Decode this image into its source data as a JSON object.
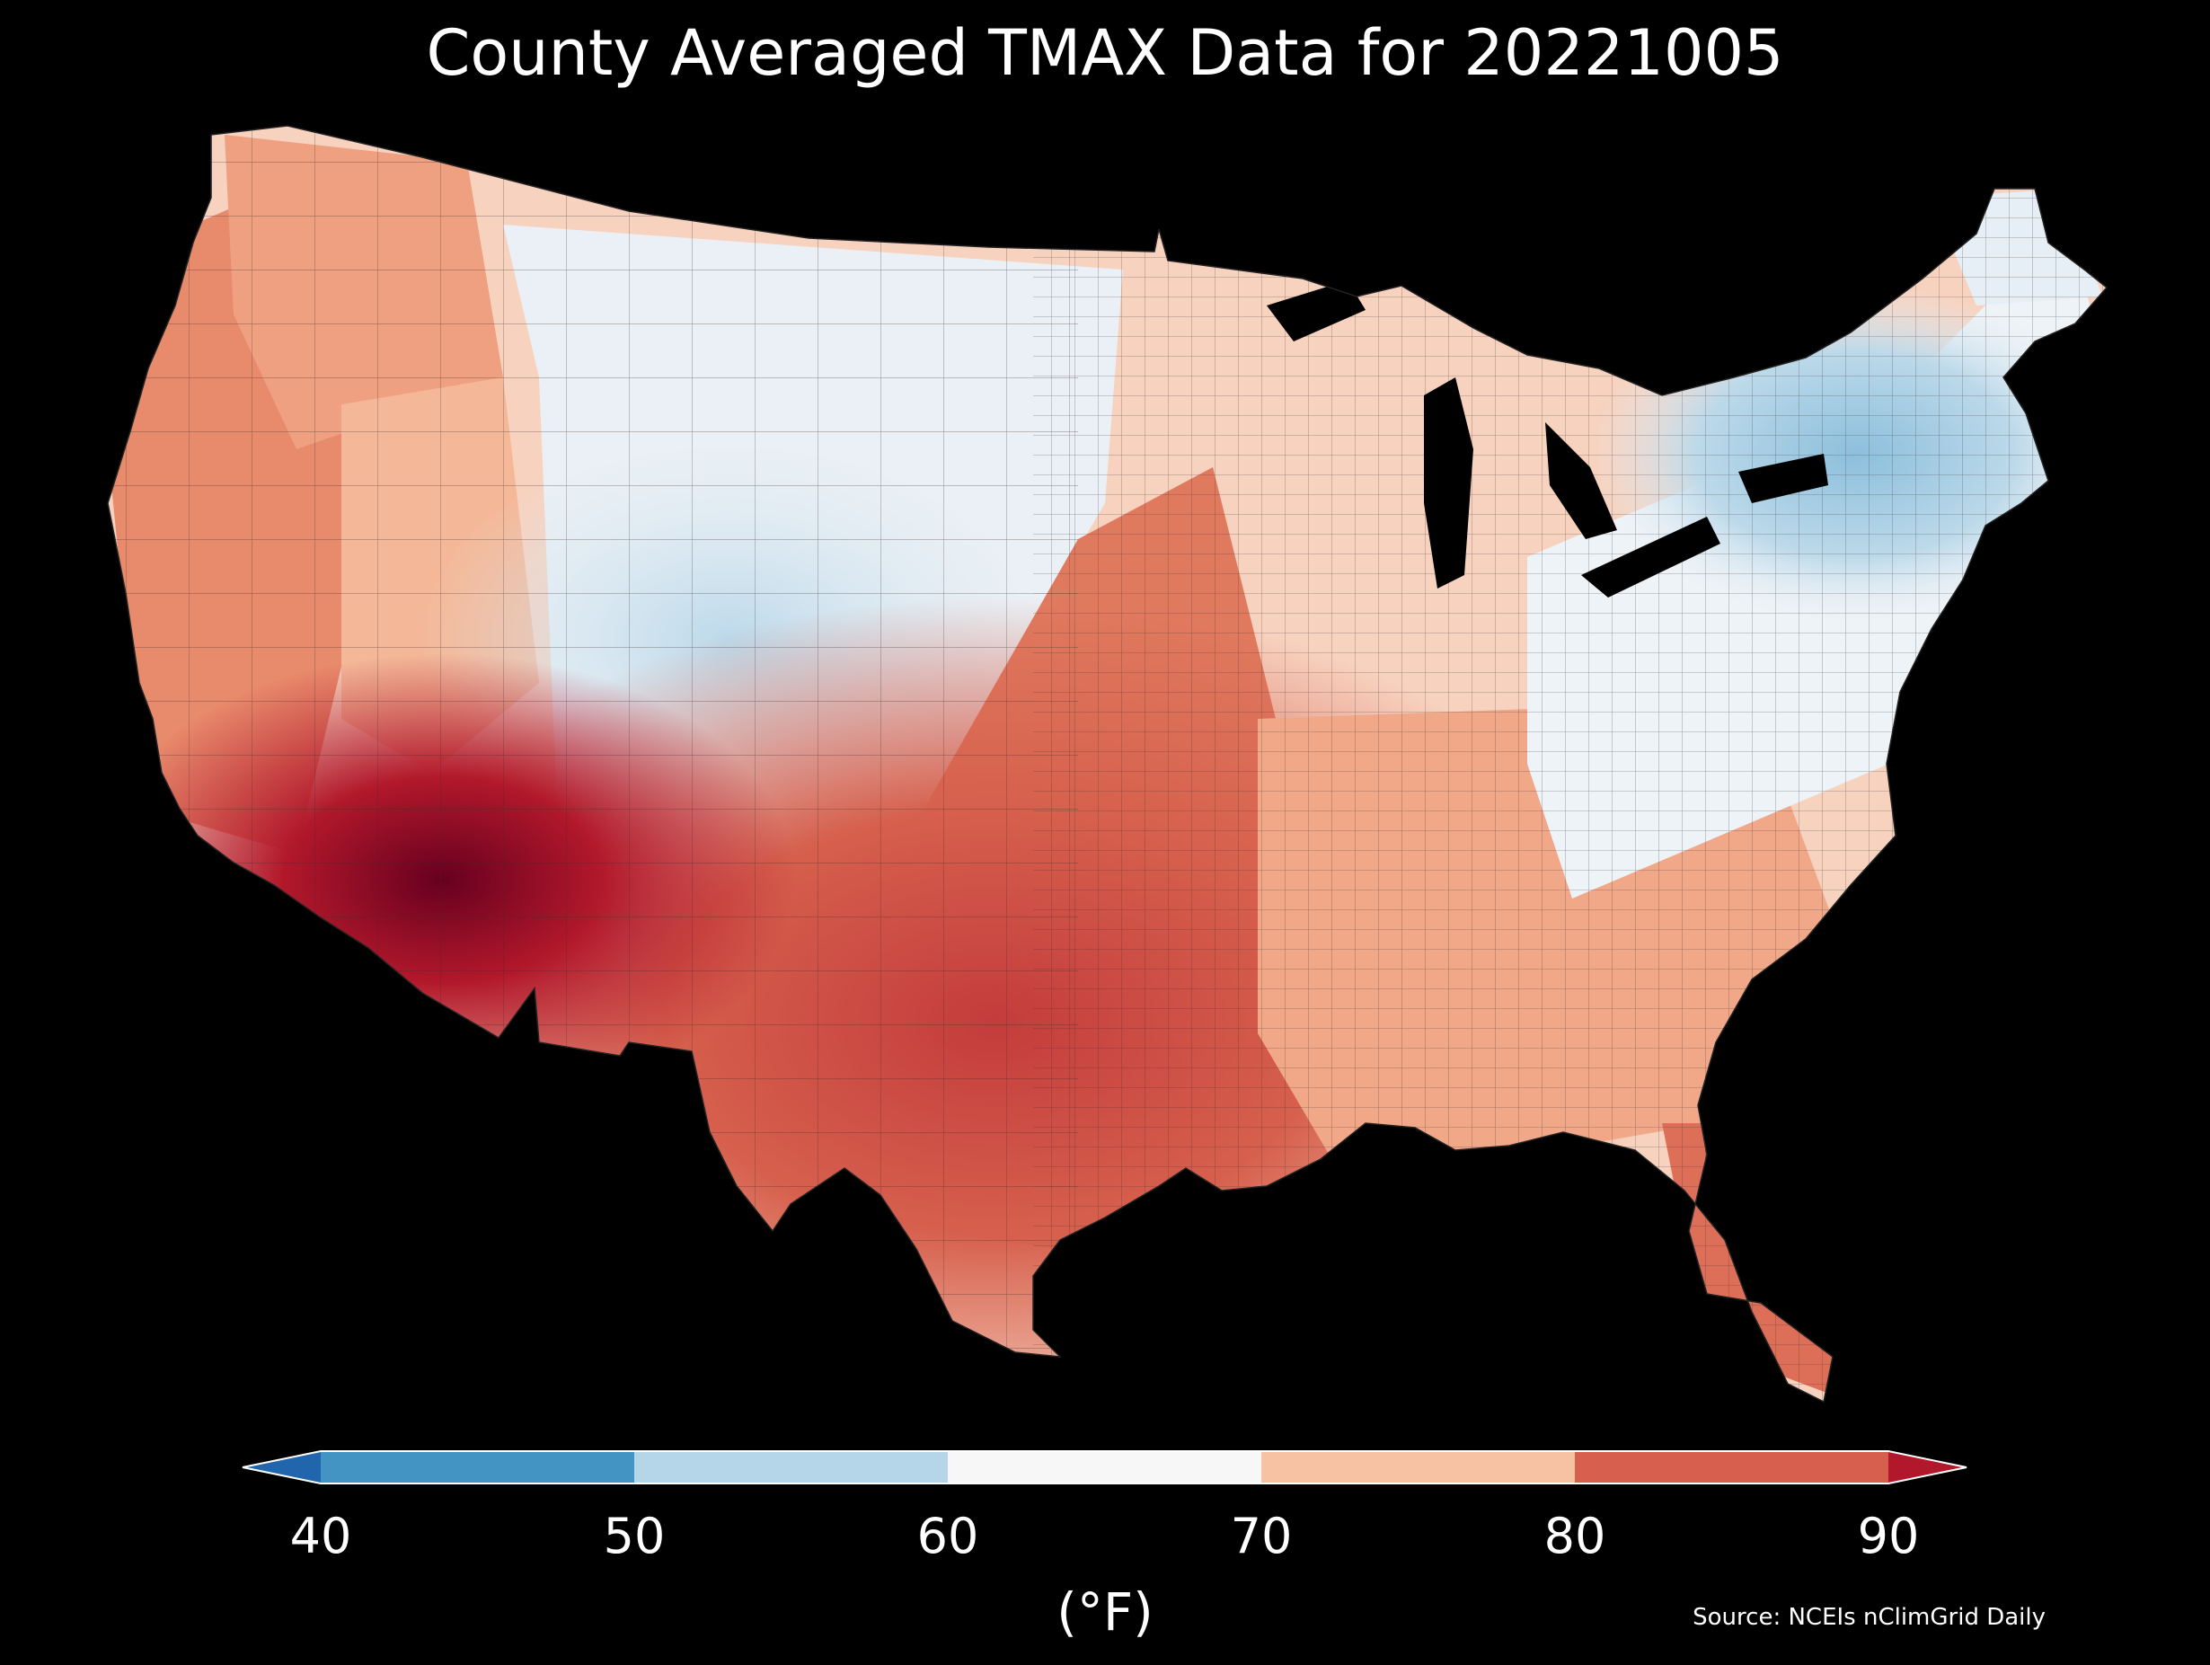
{
  "title": "County Averaged TMAX Data for 20221005",
  "colorbar": {
    "ticks": [
      "40",
      "50",
      "60",
      "70",
      "80",
      "90"
    ],
    "unit": "(°F)",
    "extend": "both",
    "bins": [
      {
        "range": "<40",
        "color": "#2166ac"
      },
      {
        "range": "40-50",
        "color": "#4393c3"
      },
      {
        "range": "50-60",
        "color": "#b4d6e8"
      },
      {
        "range": "60-70",
        "color": "#f7f7f7"
      },
      {
        "range": "70-80",
        "color": "#f7c2a3"
      },
      {
        "range": "80-90",
        "color": "#d6604d"
      },
      {
        "range": ">90",
        "color": "#b2182b"
      }
    ]
  },
  "source": "Source: NCEIs nClimGrid Daily",
  "map": {
    "region": "Contiguous United States counties",
    "variable": "TMAX",
    "date": "20221005",
    "patterns": [
      {
        "area": "Desert Southwest",
        "color": "#b2182b"
      },
      {
        "area": "Southwest border",
        "color": "#67001f"
      },
      {
        "area": "Texas to Kansas band",
        "color": "#d6604d"
      },
      {
        "area": "South-central Texas",
        "color": "#c43c3c"
      },
      {
        "area": "California",
        "color": "#e07a5f"
      },
      {
        "area": "Pacific Northwest interior",
        "color": "#eea081"
      },
      {
        "area": "Southeast",
        "color": "#f0a07e"
      },
      {
        "area": "Florida",
        "color": "#dd6e58"
      },
      {
        "area": "Southeast coast",
        "color": "#f3b394"
      },
      {
        "area": "Great Plains north",
        "color": "#f8d5c3"
      },
      {
        "area": "Midwest",
        "color": "#f7d0bb"
      },
      {
        "area": "Rockies north",
        "color": "#dce9f2"
      },
      {
        "area": "Colorado",
        "color": "#bcd9ea"
      },
      {
        "area": "Northeast",
        "color": "#bcd9ea"
      },
      {
        "area": "Central Appalachians",
        "color": "#92c5de"
      },
      {
        "area": "Appalachia",
        "color": "#eef3f7"
      },
      {
        "area": "Upper Midwest",
        "color": "#f5eeea"
      },
      {
        "area": "Maine",
        "color": "#eaf2f8"
      },
      {
        "area": "Washington coast",
        "color": "#e8f0f6"
      }
    ]
  }
}
